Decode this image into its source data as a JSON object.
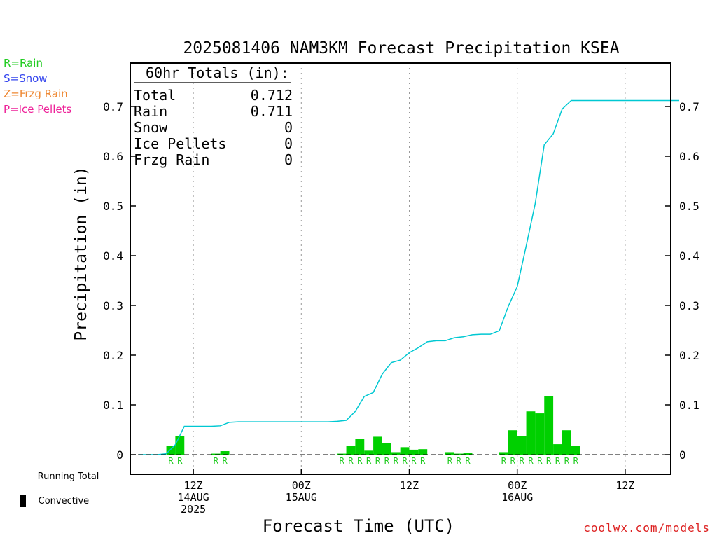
{
  "chart_data": {
    "type": "bar",
    "title": "2025081406 NAM3KM Forecast Precipitation KSEA",
    "ylabel": "Precipitation (in)",
    "xlabel": "Forecast Time (UTC)",
    "ylim": [
      0,
      0.78
    ],
    "yticks": [
      0,
      0.1,
      0.2,
      0.3,
      0.4,
      0.5,
      0.6,
      0.7
    ],
    "xlim_hours": [
      -1,
      60
    ],
    "x_ticks": [
      {
        "hour": 6,
        "lines": [
          "12Z",
          "14AUG",
          "2025"
        ]
      },
      {
        "hour": 18,
        "lines": [
          "00Z",
          "15AUG"
        ]
      },
      {
        "hour": 30,
        "lines": [
          "12Z"
        ]
      },
      {
        "hour": 42,
        "lines": [
          "00Z",
          "16AUG"
        ]
      },
      {
        "hour": 54,
        "lines": [
          "12Z"
        ]
      }
    ],
    "grid": "vertical dotted at tick hours",
    "totals_box": {
      "heading": "60hr Totals (in):",
      "rows": [
        {
          "label": "Total",
          "value": "0.712"
        },
        {
          "label": "Rain",
          "value": "0.711"
        },
        {
          "label": "Snow",
          "value": "0"
        },
        {
          "label": "Ice Pellets",
          "value": "0"
        },
        {
          "label": "Frzg Rain",
          "value": "0"
        }
      ]
    },
    "hourly_precip": {
      "name": "Hourly Precipitation",
      "color": "#00d000",
      "bars": [
        {
          "hour": 4,
          "value": 0.018,
          "ptype": "R"
        },
        {
          "hour": 5,
          "value": 0.038,
          "ptype": "R"
        },
        {
          "hour": 9,
          "value": 0.002,
          "ptype": "R"
        },
        {
          "hour": 10,
          "value": 0.007,
          "ptype": "R"
        },
        {
          "hour": 23,
          "value": 0.002,
          "ptype": "R"
        },
        {
          "hour": 24,
          "value": 0.017,
          "ptype": "R"
        },
        {
          "hour": 25,
          "value": 0.031,
          "ptype": "R"
        },
        {
          "hour": 26,
          "value": 0.008,
          "ptype": "R"
        },
        {
          "hour": 27,
          "value": 0.036,
          "ptype": "R"
        },
        {
          "hour": 28,
          "value": 0.023,
          "ptype": "R"
        },
        {
          "hour": 29,
          "value": 0.005,
          "ptype": "R"
        },
        {
          "hour": 30,
          "value": 0.015,
          "ptype": "R"
        },
        {
          "hour": 31,
          "value": 0.01,
          "ptype": "R"
        },
        {
          "hour": 32,
          "value": 0.011,
          "ptype": "R"
        },
        {
          "hour": 35,
          "value": 0.005,
          "ptype": "R"
        },
        {
          "hour": 36,
          "value": 0.002,
          "ptype": "R"
        },
        {
          "hour": 37,
          "value": 0.004,
          "ptype": "R"
        },
        {
          "hour": 41,
          "value": 0.005,
          "ptype": "R"
        },
        {
          "hour": 42,
          "value": 0.049,
          "ptype": "R"
        },
        {
          "hour": 43,
          "value": 0.037,
          "ptype": "R"
        },
        {
          "hour": 44,
          "value": 0.087,
          "ptype": "R"
        },
        {
          "hour": 45,
          "value": 0.083,
          "ptype": "R"
        },
        {
          "hour": 46,
          "value": 0.118,
          "ptype": "R"
        },
        {
          "hour": 47,
          "value": 0.021,
          "ptype": "R"
        },
        {
          "hour": 48,
          "value": 0.049,
          "ptype": "R"
        },
        {
          "hour": 49,
          "value": 0.018,
          "ptype": "R"
        }
      ]
    },
    "running_total": {
      "name": "Running Total",
      "color": "#00c8d2",
      "points": [
        [
          0,
          0
        ],
        [
          1,
          0
        ],
        [
          2,
          0
        ],
        [
          3,
          0.002
        ],
        [
          4,
          0.02
        ],
        [
          5,
          0.057
        ],
        [
          6,
          0.057
        ],
        [
          7,
          0.057
        ],
        [
          8,
          0.057
        ],
        [
          9,
          0.058
        ],
        [
          10,
          0.065
        ],
        [
          11,
          0.066
        ],
        [
          12,
          0.066
        ],
        [
          13,
          0.066
        ],
        [
          14,
          0.066
        ],
        [
          15,
          0.066
        ],
        [
          16,
          0.066
        ],
        [
          17,
          0.066
        ],
        [
          18,
          0.066
        ],
        [
          19,
          0.066
        ],
        [
          20,
          0.066
        ],
        [
          21,
          0.066
        ],
        [
          22,
          0.067
        ],
        [
          23,
          0.069
        ],
        [
          24,
          0.087
        ],
        [
          25,
          0.117
        ],
        [
          26,
          0.125
        ],
        [
          27,
          0.162
        ],
        [
          28,
          0.185
        ],
        [
          29,
          0.19
        ],
        [
          30,
          0.205
        ],
        [
          31,
          0.215
        ],
        [
          32,
          0.227
        ],
        [
          33,
          0.229
        ],
        [
          34,
          0.229
        ],
        [
          35,
          0.235
        ],
        [
          36,
          0.237
        ],
        [
          37,
          0.241
        ],
        [
          38,
          0.242
        ],
        [
          39,
          0.242
        ],
        [
          40,
          0.249
        ],
        [
          41,
          0.298
        ],
        [
          42,
          0.338
        ],
        [
          43,
          0.42
        ],
        [
          44,
          0.505
        ],
        [
          45,
          0.623
        ],
        [
          46,
          0.645
        ],
        [
          47,
          0.695
        ],
        [
          48,
          0.712
        ],
        [
          49,
          0.712
        ],
        [
          50,
          0.712
        ],
        [
          51,
          0.712
        ],
        [
          52,
          0.712
        ],
        [
          53,
          0.712
        ],
        [
          54,
          0.712
        ],
        [
          55,
          0.712
        ],
        [
          56,
          0.712
        ],
        [
          57,
          0.712
        ],
        [
          58,
          0.712
        ],
        [
          59,
          0.712
        ],
        [
          60,
          0.712
        ]
      ]
    }
  },
  "ptype_legend": [
    {
      "text": "R=Rain",
      "color": "#22cc22"
    },
    {
      "text": "S=Snow",
      "color": "#3344ee"
    },
    {
      "text": "Z=Frzg Rain",
      "color": "#ee8833"
    },
    {
      "text": "P=Ice Pellets",
      "color": "#ee2299"
    }
  ],
  "bottom_legend": {
    "running_total_label": "Running Total",
    "convective_label": "Convective"
  },
  "credit": "coolwx.com/models"
}
